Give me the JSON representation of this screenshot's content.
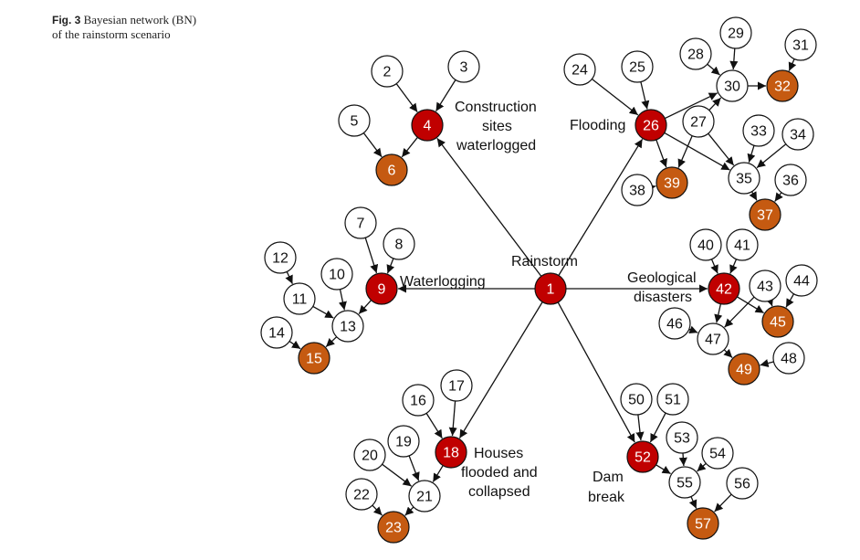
{
  "caption": {
    "fig_label": "Fig. 3",
    "line1": "Bayesian network (BN)",
    "line2": "of the rainstorm scenario"
  },
  "colors": {
    "red": "#c00000",
    "orange": "#c55a11",
    "white": "#ffffff",
    "edge": "#111111"
  },
  "nodes": [
    {
      "id": "1",
      "type": "red"
    },
    {
      "id": "2",
      "type": "white"
    },
    {
      "id": "3",
      "type": "white"
    },
    {
      "id": "4",
      "type": "red"
    },
    {
      "id": "5",
      "type": "white"
    },
    {
      "id": "6",
      "type": "orange"
    },
    {
      "id": "7",
      "type": "white"
    },
    {
      "id": "8",
      "type": "white"
    },
    {
      "id": "9",
      "type": "red"
    },
    {
      "id": "10",
      "type": "white"
    },
    {
      "id": "11",
      "type": "white"
    },
    {
      "id": "12",
      "type": "white"
    },
    {
      "id": "13",
      "type": "white"
    },
    {
      "id": "14",
      "type": "white"
    },
    {
      "id": "15",
      "type": "orange"
    },
    {
      "id": "16",
      "type": "white"
    },
    {
      "id": "17",
      "type": "white"
    },
    {
      "id": "18",
      "type": "red"
    },
    {
      "id": "19",
      "type": "white"
    },
    {
      "id": "20",
      "type": "white"
    },
    {
      "id": "21",
      "type": "white"
    },
    {
      "id": "22",
      "type": "white"
    },
    {
      "id": "23",
      "type": "orange"
    },
    {
      "id": "24",
      "type": "white"
    },
    {
      "id": "25",
      "type": "white"
    },
    {
      "id": "26",
      "type": "red"
    },
    {
      "id": "27",
      "type": "white"
    },
    {
      "id": "28",
      "type": "white"
    },
    {
      "id": "29",
      "type": "white"
    },
    {
      "id": "30",
      "type": "white"
    },
    {
      "id": "31",
      "type": "white"
    },
    {
      "id": "32",
      "type": "orange"
    },
    {
      "id": "33",
      "type": "white"
    },
    {
      "id": "34",
      "type": "white"
    },
    {
      "id": "35",
      "type": "white"
    },
    {
      "id": "36",
      "type": "white"
    },
    {
      "id": "37",
      "type": "orange"
    },
    {
      "id": "38",
      "type": "white"
    },
    {
      "id": "39",
      "type": "orange"
    },
    {
      "id": "40",
      "type": "white"
    },
    {
      "id": "41",
      "type": "white"
    },
    {
      "id": "42",
      "type": "red"
    },
    {
      "id": "43",
      "type": "white"
    },
    {
      "id": "44",
      "type": "white"
    },
    {
      "id": "45",
      "type": "orange"
    },
    {
      "id": "46",
      "type": "white"
    },
    {
      "id": "47",
      "type": "white"
    },
    {
      "id": "48",
      "type": "white"
    },
    {
      "id": "49",
      "type": "orange"
    },
    {
      "id": "50",
      "type": "white"
    },
    {
      "id": "51",
      "type": "white"
    },
    {
      "id": "52",
      "type": "red"
    },
    {
      "id": "53",
      "type": "white"
    },
    {
      "id": "54",
      "type": "white"
    },
    {
      "id": "55",
      "type": "white"
    },
    {
      "id": "56",
      "type": "white"
    },
    {
      "id": "57",
      "type": "orange"
    }
  ],
  "edges": [
    [
      "1",
      "4"
    ],
    [
      "1",
      "9"
    ],
    [
      "1",
      "18"
    ],
    [
      "1",
      "26"
    ],
    [
      "1",
      "42"
    ],
    [
      "1",
      "52"
    ],
    [
      "2",
      "4"
    ],
    [
      "3",
      "4"
    ],
    [
      "5",
      "6"
    ],
    [
      "4",
      "6"
    ],
    [
      "7",
      "9"
    ],
    [
      "8",
      "9"
    ],
    [
      "12",
      "11"
    ],
    [
      "11",
      "13"
    ],
    [
      "10",
      "13"
    ],
    [
      "9",
      "13"
    ],
    [
      "14",
      "15"
    ],
    [
      "13",
      "15"
    ],
    [
      "16",
      "18"
    ],
    [
      "17",
      "18"
    ],
    [
      "20",
      "21"
    ],
    [
      "19",
      "21"
    ],
    [
      "18",
      "21"
    ],
    [
      "22",
      "23"
    ],
    [
      "21",
      "23"
    ],
    [
      "24",
      "26"
    ],
    [
      "25",
      "26"
    ],
    [
      "26",
      "30"
    ],
    [
      "28",
      "30"
    ],
    [
      "29",
      "30"
    ],
    [
      "27",
      "30"
    ],
    [
      "30",
      "32"
    ],
    [
      "31",
      "32"
    ],
    [
      "26",
      "39"
    ],
    [
      "38",
      "39"
    ],
    [
      "27",
      "39"
    ],
    [
      "26",
      "35"
    ],
    [
      "27",
      "35"
    ],
    [
      "33",
      "35"
    ],
    [
      "34",
      "35"
    ],
    [
      "35",
      "37"
    ],
    [
      "36",
      "37"
    ],
    [
      "40",
      "42"
    ],
    [
      "41",
      "42"
    ],
    [
      "42",
      "45"
    ],
    [
      "43",
      "45"
    ],
    [
      "44",
      "45"
    ],
    [
      "42",
      "47"
    ],
    [
      "43",
      "47"
    ],
    [
      "46",
      "47"
    ],
    [
      "47",
      "49"
    ],
    [
      "48",
      "49"
    ],
    [
      "50",
      "52"
    ],
    [
      "51",
      "52"
    ],
    [
      "52",
      "55"
    ],
    [
      "53",
      "55"
    ],
    [
      "54",
      "55"
    ],
    [
      "55",
      "57"
    ],
    [
      "56",
      "57"
    ]
  ],
  "labels": {
    "rainstorm": "Rainstorm",
    "construction": [
      "Construction",
      "sites",
      "waterlogged"
    ],
    "waterlogging": "Waterlogging",
    "flooding": "Flooding",
    "geological": [
      "Geological",
      "disasters"
    ],
    "houses": [
      "Houses",
      "flooded and",
      "collapsed"
    ],
    "dam": [
      "Dam",
      "break"
    ]
  }
}
